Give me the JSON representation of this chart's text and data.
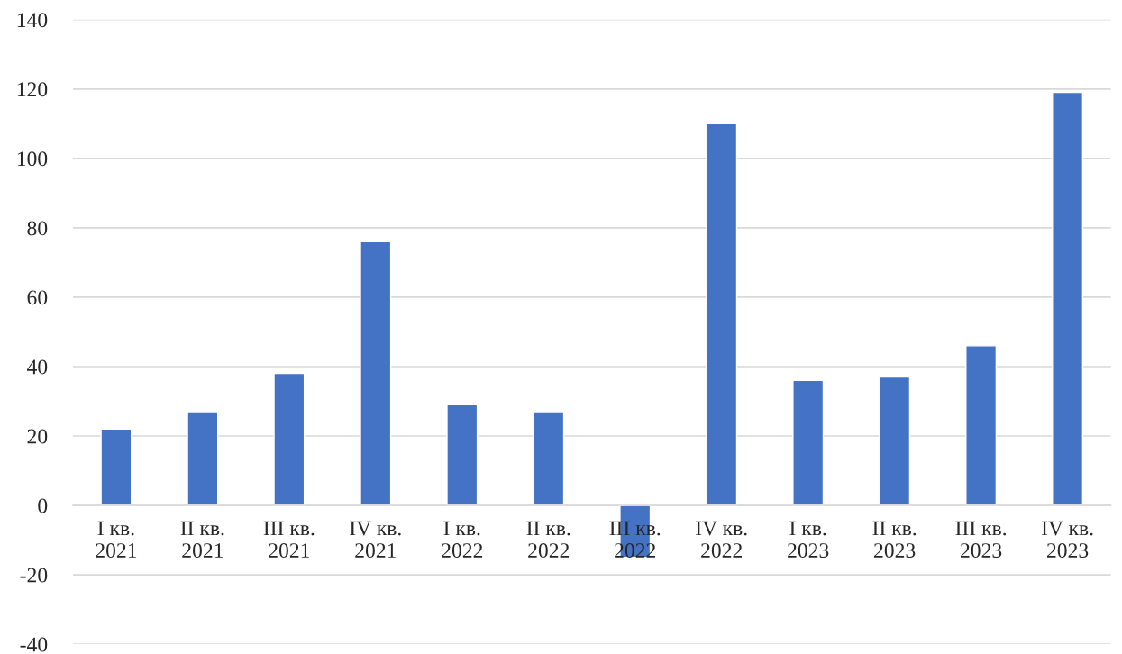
{
  "chart_data": {
    "type": "bar",
    "categories": [
      "I кв.\n2021",
      "II кв.\n2021",
      "III кв.\n2021",
      "IV кв.\n2021",
      "I кв.\n2022",
      "II кв.\n2022",
      "III кв.\n2022",
      "IV кв.\n2022",
      "I кв.\n2023",
      "II кв.\n2023",
      "III кв.\n2023",
      "IV кв.\n2023"
    ],
    "values": [
      22,
      27,
      38,
      76,
      29,
      27,
      -15,
      110,
      36,
      37,
      46,
      119
    ],
    "color": "#4472c4",
    "ylim": [
      -40,
      140
    ],
    "yticks": [
      -40,
      -20,
      0,
      20,
      40,
      60,
      80,
      100,
      120,
      140
    ],
    "grid": "y"
  }
}
